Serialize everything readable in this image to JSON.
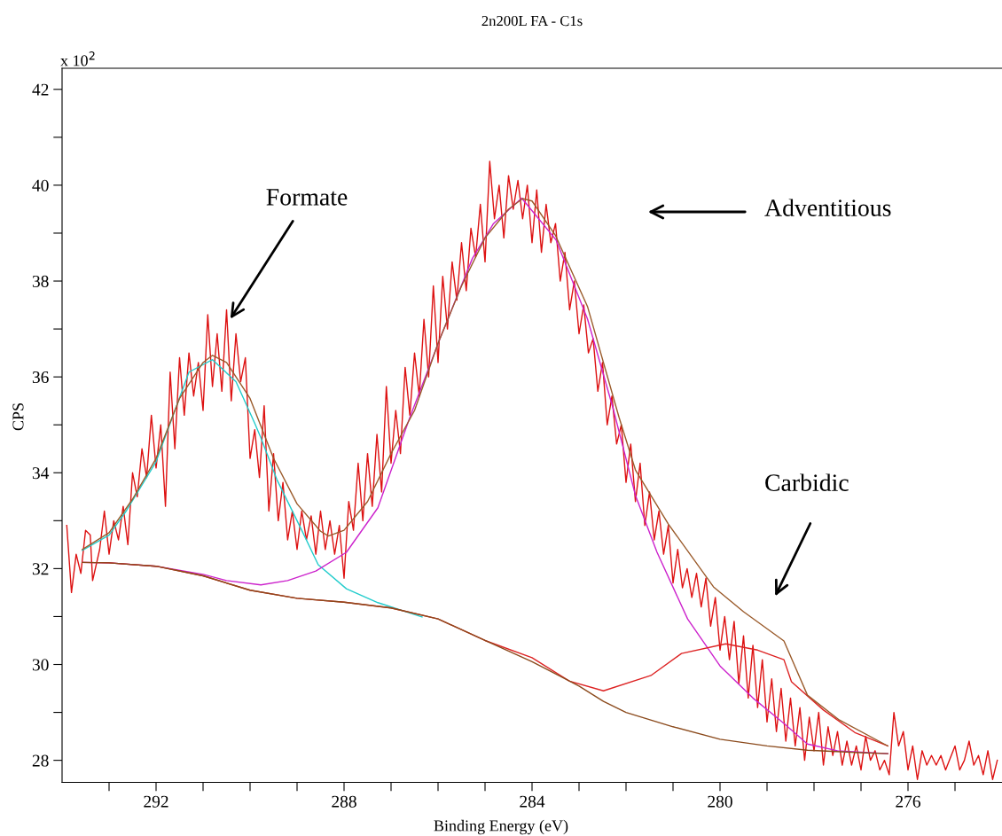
{
  "chart_data": {
    "type": "line",
    "title": "2n200L FA - C1s",
    "xlabel": "Binding Energy (eV)",
    "ylabel": "CPS",
    "xlim": [
      294,
      274
    ],
    "ylim": [
      27.54,
      42.44
    ],
    "xticks": [
      {
        "value": 293,
        "label": null
      },
      292,
      {
        "value": 291,
        "label": null
      },
      {
        "value": 290,
        "label": null
      },
      {
        "value": 289,
        "label": null
      },
      288,
      {
        "value": 287,
        "label": null
      },
      {
        "value": 286,
        "label": null
      },
      {
        "value": 285,
        "label": null
      },
      284,
      {
        "value": 283,
        "label": null
      },
      {
        "value": 282,
        "label": null
      },
      {
        "value": 281,
        "label": null
      },
      280,
      {
        "value": 279,
        "label": null
      },
      {
        "value": 278,
        "label": null
      },
      {
        "value": 277,
        "label": null
      },
      276,
      {
        "value": 275,
        "label": null
      }
    ],
    "yticks": [
      28,
      {
        "value": 29,
        "label": null
      },
      30,
      {
        "value": 31,
        "label": null
      },
      32,
      {
        "value": 33,
        "label": null
      },
      34,
      {
        "value": 35,
        "label": null
      },
      36,
      {
        "value": 37,
        "label": null
      },
      38,
      {
        "value": 39,
        "label": null
      },
      40,
      {
        "value": 41,
        "label": null
      },
      42
    ],
    "grid": false,
    "legend": false,
    "marker": "none",
    "line_style": "solid",
    "annotations": [
      "x 10$^{2}$",
      {
        "text": "Formate",
        "x": 290.42,
        "y": 37.21
      },
      "Adventitious",
      "Carbidic"
    ],
    "series": [
      {
        "color": "#dd1111",
        "x": [
          293.9,
          293.8,
          293.7,
          293.6,
          293.5,
          293.4,
          293.35,
          293.2,
          293.1,
          293.0,
          292.9,
          292.8,
          292.7,
          292.6,
          292.5,
          292.4,
          292.3,
          292.2,
          292.1,
          292.0,
          291.9,
          291.8,
          291.7,
          291.6,
          291.5,
          291.4,
          291.3,
          291.2,
          291.1,
          291.0,
          290.9,
          290.8,
          290.7,
          290.6,
          290.5,
          290.4,
          290.3,
          290.2,
          290.1,
          290.0,
          289.9,
          289.8,
          289.7,
          289.6,
          289.5,
          289.4,
          289.3,
          289.2,
          289.1,
          289.0,
          288.9,
          288.8,
          288.7,
          288.6,
          288.5,
          288.4,
          288.3,
          288.2,
          288.1,
          288.0,
          287.9,
          287.8,
          287.7,
          287.6,
          287.5,
          287.4,
          287.3,
          287.2,
          287.1,
          287.0,
          286.9,
          286.8,
          286.7,
          286.6,
          286.5,
          286.4,
          286.3,
          286.2,
          286.1,
          286.0,
          285.9,
          285.8,
          285.7,
          285.6,
          285.5,
          285.4,
          285.3,
          285.2,
          285.1,
          285.0,
          284.9,
          284.8,
          284.7,
          284.6,
          284.5,
          284.4,
          284.3,
          284.2,
          284.1,
          284.0,
          283.9,
          283.8,
          283.7,
          283.6,
          283.5,
          283.4,
          283.3,
          283.2,
          283.1,
          283.0,
          282.9,
          282.8,
          282.7,
          282.6,
          282.5,
          282.4,
          282.3,
          282.2,
          282.1,
          282.0,
          281.9,
          281.8,
          281.7,
          281.6,
          281.5,
          281.4,
          281.3,
          281.2,
          281.1,
          281.0,
          280.9,
          280.8,
          280.7,
          280.6,
          280.5,
          280.4,
          280.3,
          280.2,
          280.1,
          280.0,
          279.9,
          279.8,
          279.7,
          279.6,
          279.5,
          279.4,
          279.3,
          279.2,
          279.1,
          279.0,
          278.9,
          278.8,
          278.7,
          278.6,
          278.5,
          278.4,
          278.3,
          278.2,
          278.1,
          278.0,
          277.9,
          277.8,
          277.7,
          277.6,
          277.5,
          277.4,
          277.3,
          277.2,
          277.1,
          277.0,
          276.9,
          276.8,
          276.7,
          276.6,
          276.5,
          276.4,
          276.3,
          276.2,
          276.1,
          276.0,
          275.9,
          275.8,
          275.7,
          275.6,
          275.5,
          275.4,
          275.3,
          275.2,
          275.0,
          274.9,
          274.8,
          274.7,
          274.6,
          274.5,
          274.4,
          274.3,
          274.2,
          274.1
        ],
        "values": [
          32.9,
          31.5,
          32.3,
          31.9,
          32.8,
          32.7,
          31.75,
          32.4,
          33.2,
          32.3,
          33.0,
          32.6,
          33.3,
          32.5,
          34.0,
          33.5,
          34.5,
          33.9,
          35.2,
          34.1,
          35.0,
          33.3,
          36.1,
          34.5,
          36.4,
          35.2,
          36.5,
          35.6,
          36.3,
          35.3,
          37.3,
          35.8,
          36.9,
          35.7,
          37.4,
          35.5,
          36.9,
          35.9,
          36.4,
          34.3,
          34.9,
          33.9,
          35.4,
          33.2,
          34.4,
          33.0,
          33.8,
          32.6,
          33.2,
          32.4,
          33.2,
          32.6,
          33.1,
          32.3,
          33.2,
          32.4,
          33.0,
          32.3,
          32.9,
          31.8,
          33.4,
          32.8,
          34.2,
          33.0,
          34.4,
          33.3,
          34.8,
          33.6,
          35.8,
          34.2,
          35.3,
          34.4,
          36.2,
          35.2,
          36.5,
          35.6,
          37.2,
          36.0,
          37.9,
          36.3,
          38.1,
          37.0,
          38.4,
          37.6,
          38.8,
          37.8,
          39.1,
          38.5,
          39.6,
          38.4,
          40.5,
          39.3,
          40.0,
          38.9,
          40.2,
          39.5,
          40.1,
          39.3,
          40.0,
          38.8,
          39.9,
          38.6,
          39.6,
          38.8,
          39.2,
          38.0,
          38.6,
          37.4,
          38.0,
          36.9,
          37.5,
          36.5,
          36.8,
          35.7,
          36.3,
          35.0,
          35.6,
          34.6,
          35.0,
          33.8,
          34.6,
          33.4,
          34.2,
          32.9,
          33.6,
          32.6,
          33.2,
          32.3,
          32.9,
          31.7,
          32.4,
          31.6,
          32.0,
          31.4,
          31.9,
          31.2,
          31.8,
          30.8,
          31.4,
          30.3,
          31.0,
          30.1,
          30.9,
          29.6,
          30.6,
          29.3,
          30.4,
          29.1,
          30.1,
          28.8,
          29.7,
          28.6,
          29.5,
          28.4,
          29.3,
          28.3,
          29.1,
          28.0,
          28.9,
          28.2,
          29.0,
          27.9,
          28.7,
          28.1,
          28.6,
          27.9,
          28.4,
          27.9,
          28.3,
          27.8,
          28.5,
          28.0,
          28.2,
          27.8,
          28.0,
          27.7,
          29.0,
          28.3,
          28.6,
          27.8,
          28.3,
          27.6,
          28.2,
          27.9,
          28.1,
          27.9,
          28.1,
          27.8,
          28.3,
          27.8,
          28.0,
          28.4,
          27.9,
          28.1,
          27.7,
          28.2,
          27.6,
          28.0
        ]
      },
      {
        "color": "#22cccc",
        "x": [
          293.57,
          293,
          292.63,
          292,
          291.7,
          291.3,
          290.8,
          290.3,
          289.9,
          289.77,
          289.43,
          288.9,
          288.55,
          287.95,
          287.28,
          286.34
        ],
        "values": [
          32.38,
          32.7,
          33.21,
          34.23,
          35.03,
          36.1,
          36.36,
          35.9,
          35.03,
          34.73,
          33.86,
          32.8,
          32.08,
          31.58,
          31.29,
          30.99
        ]
      },
      {
        "color": "#cc22cc",
        "x": [
          293.57,
          293,
          292,
          291,
          290.5,
          289.77,
          289.2,
          288.6,
          287.95,
          287.28,
          286.62,
          285.95,
          285.27,
          284.82,
          284.22,
          283.49,
          282.82,
          282.28,
          281.8,
          281.34,
          280.69,
          280,
          279.3,
          278.64,
          278.14,
          277.5,
          276.43
        ],
        "values": [
          32.13,
          32.12,
          32.05,
          31.88,
          31.75,
          31.66,
          31.75,
          31.95,
          32.34,
          33.27,
          35.1,
          36.82,
          38.47,
          39.2,
          39.73,
          38.86,
          37.21,
          35.36,
          33.53,
          32.34,
          30.95,
          29.97,
          29.3,
          28.77,
          28.34,
          28.2,
          28.14
        ]
      },
      {
        "color": "#dd2222",
        "x": [
          293.57,
          293,
          292,
          291,
          290,
          289,
          288,
          287,
          286,
          285,
          284,
          283.2,
          282.48,
          281.47,
          280.82,
          279.88,
          279.2,
          278.64,
          278.48,
          277.8,
          277.13,
          276.43
        ],
        "values": [
          32.13,
          32.12,
          32.05,
          31.85,
          31.55,
          31.38,
          31.3,
          31.18,
          30.95,
          30.5,
          30.14,
          29.65,
          29.45,
          29.77,
          30.23,
          30.43,
          30.3,
          30.1,
          29.64,
          29.05,
          28.58,
          28.3
        ]
      },
      {
        "color": "#8b4a1c",
        "x": [
          293.57,
          293,
          292,
          291,
          290,
          289,
          288,
          287,
          286,
          285,
          284,
          283,
          282.48,
          282,
          281,
          280,
          279,
          278.14,
          277,
          276.43
        ],
        "values": [
          32.13,
          32.12,
          32.05,
          31.85,
          31.55,
          31.38,
          31.3,
          31.18,
          30.95,
          30.5,
          30.06,
          29.55,
          29.23,
          29.0,
          28.7,
          28.44,
          28.3,
          28.21,
          28.16,
          28.14
        ]
      },
      {
        "color": "#9a5a2a",
        "x": [
          293.57,
          293,
          292.5,
          292,
          291.5,
          291,
          290.8,
          290.5,
          290,
          289.5,
          289,
          288.5,
          288.33,
          288,
          287.5,
          287,
          286.5,
          286,
          285.5,
          285,
          284.5,
          284.2,
          284,
          283.5,
          282.82,
          282.15,
          281.8,
          281.1,
          280.14,
          279.5,
          278.64,
          278.14,
          277.46,
          276.43
        ],
        "values": [
          32.4,
          32.75,
          33.45,
          34.3,
          35.55,
          36.3,
          36.45,
          36.3,
          35.55,
          34.3,
          33.35,
          32.78,
          32.68,
          32.8,
          33.4,
          34.4,
          35.3,
          36.7,
          37.9,
          38.9,
          39.5,
          39.72,
          39.67,
          38.95,
          37.47,
          35.16,
          34.06,
          32.93,
          31.62,
          31.1,
          30.49,
          29.36,
          28.84,
          28.3
        ]
      }
    ]
  }
}
